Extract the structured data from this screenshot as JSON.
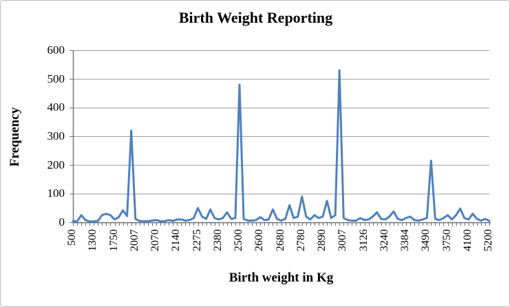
{
  "chart_data": {
    "type": "line",
    "title": "Birth Weight Reporting",
    "xlabel": "Birth weight in Kg",
    "ylabel": "Frequency",
    "ylim": [
      0,
      600
    ],
    "yticks": [
      0,
      100,
      200,
      300,
      400,
      500,
      600
    ],
    "grid": true,
    "legend": "none",
    "x_tick_labels": [
      "500",
      "1300",
      "1750",
      "2007",
      "2070",
      "2140",
      "2275",
      "2380",
      "2500",
      "2600",
      "2680",
      "2780",
      "2890",
      "3007",
      "3126",
      "3240",
      "3384",
      "3490",
      "3750",
      "4100",
      "5200"
    ],
    "label_interval": 5,
    "line_color": "#4F81BD",
    "gridline_color": "#9a9a9a",
    "axis_color": "#6e6e6e",
    "series": [
      {
        "name": "Frequency",
        "values": [
          5,
          3,
          25,
          8,
          3,
          3,
          5,
          25,
          30,
          25,
          10,
          18,
          42,
          22,
          320,
          12,
          5,
          4,
          4,
          6,
          8,
          4,
          4,
          8,
          5,
          10,
          10,
          6,
          8,
          15,
          50,
          20,
          12,
          45,
          15,
          10,
          15,
          35,
          12,
          15,
          480,
          12,
          6,
          6,
          8,
          18,
          8,
          10,
          45,
          12,
          6,
          12,
          60,
          15,
          20,
          90,
          20,
          10,
          25,
          15,
          20,
          75,
          15,
          25,
          530,
          15,
          8,
          6,
          6,
          15,
          8,
          10,
          20,
          35,
          12,
          10,
          20,
          38,
          12,
          8,
          15,
          20,
          8,
          6,
          10,
          15,
          215,
          12,
          8,
          15,
          25,
          10,
          25,
          48,
          15,
          10,
          30,
          12,
          6,
          12,
          5
        ]
      }
    ],
    "peak_annotations": [
      {
        "x": "2000",
        "value": 320
      },
      {
        "x": "2500",
        "value": 480
      },
      {
        "x": "3000",
        "value": 530
      },
      {
        "x": "3500",
        "value": 215
      }
    ]
  }
}
